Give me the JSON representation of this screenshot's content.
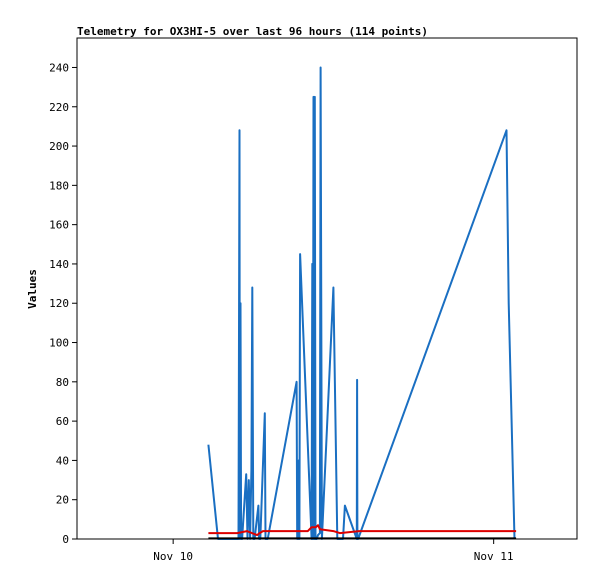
{
  "chart_data": {
    "type": "line",
    "title": "Telemetry for OX3HI-5 over last 96 hours (114 points)",
    "xlabel": "",
    "ylabel": "Values",
    "xlim": [
      -0.3,
      1.26
    ],
    "ylim": [
      0,
      255
    ],
    "y_ticks": [
      0,
      20,
      40,
      60,
      80,
      100,
      120,
      140,
      160,
      180,
      200,
      220,
      240
    ],
    "x_ticks": [
      {
        "value": 0,
        "label": "Nov 10"
      },
      {
        "value": 1,
        "label": "Nov 11"
      }
    ],
    "grid": false,
    "legend": "none",
    "series": [
      {
        "color": "#1a6fc2",
        "x": [
          0.11,
          0.14,
          0.204,
          0.207,
          0.208,
          0.21,
          0.212,
          0.215,
          0.228,
          0.232,
          0.236,
          0.24,
          0.244,
          0.247,
          0.25,
          0.254,
          0.266,
          0.268,
          0.272,
          0.286,
          0.288,
          0.29,
          0.292,
          0.295,
          0.385,
          0.387,
          0.388,
          0.39,
          0.392,
          0.394,
          0.396,
          0.432,
          0.434,
          0.436,
          0.438,
          0.44,
          0.442,
          0.444,
          0.448,
          0.452,
          0.458,
          0.46,
          0.464,
          0.5,
          0.512,
          0.522,
          0.53,
          0.536,
          0.573,
          0.574,
          0.575,
          0.577,
          1.04,
          1.047,
          1.065
        ],
        "y": [
          48,
          0,
          0,
          208,
          0,
          120,
          0,
          0,
          33,
          0,
          30,
          0,
          35,
          128,
          0,
          0,
          17,
          0,
          0,
          64,
          0,
          0,
          0,
          0,
          80,
          0,
          32,
          0,
          40,
          0,
          145,
          0,
          140,
          0,
          225,
          0,
          225,
          0,
          0,
          2,
          3,
          240,
          0,
          128,
          0,
          0,
          0,
          17,
          0,
          81,
          0,
          0,
          208,
          120,
          0
        ]
      },
      {
        "color": "#dd0000",
        "x": [
          0.11,
          0.2,
          0.23,
          0.262,
          0.27,
          0.28,
          0.3,
          0.42,
          0.432,
          0.445,
          0.452,
          0.458,
          0.5,
          0.52,
          0.58,
          1.07
        ],
        "y": [
          3,
          3,
          4,
          2,
          3,
          4,
          4,
          4,
          6,
          6,
          7,
          5,
          4,
          3,
          4,
          4
        ]
      },
      {
        "color": "#000000",
        "x": [
          0.11,
          1.07
        ],
        "y": [
          0.3,
          0.3
        ]
      }
    ]
  }
}
